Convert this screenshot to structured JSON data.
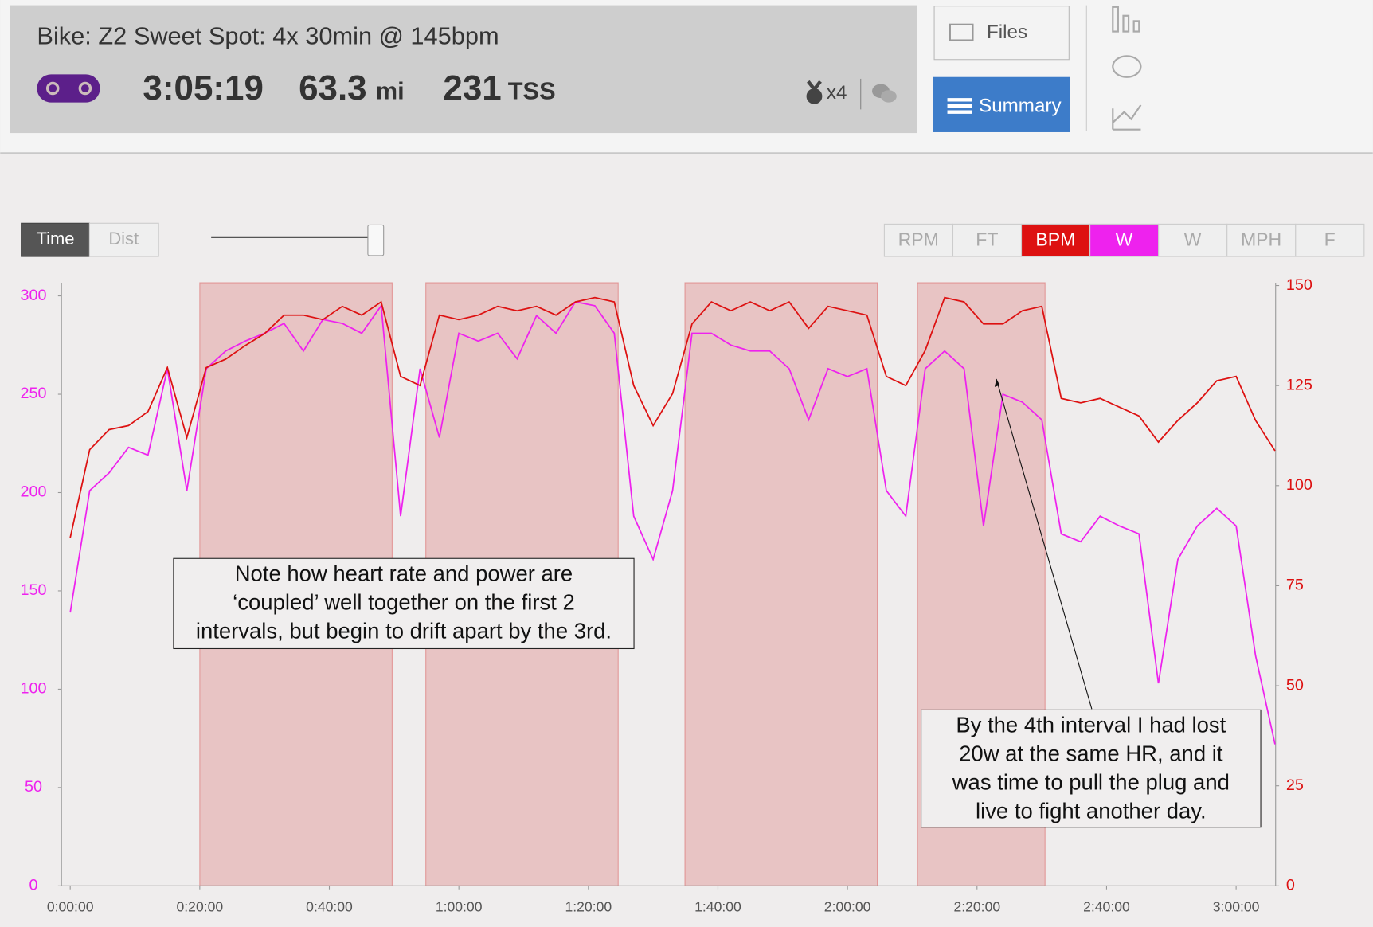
{
  "header": {
    "title": "Bike: Z2 Sweet Spot: 4x 30min @ 145bpm",
    "duration": "3:05:19",
    "distance": "63.3",
    "distance_unit": "mi",
    "tss": "231",
    "tss_unit": "TSS",
    "badge_count": "x4"
  },
  "nav": {
    "files": "Files",
    "summary": "Summary"
  },
  "toolbar": {
    "modes": [
      "Time",
      "Dist"
    ],
    "channels": [
      "RPM",
      "FT",
      "BPM",
      "W",
      "W",
      "MPH",
      "F"
    ]
  },
  "chart_data": {
    "type": "line",
    "x": [
      0,
      3,
      6,
      9,
      12,
      15,
      18,
      21,
      24,
      27,
      30,
      33,
      36,
      39,
      42,
      45,
      48,
      51,
      54,
      57,
      60,
      63,
      66,
      69,
      72,
      75,
      78,
      81,
      84,
      87,
      90,
      93,
      96,
      99,
      102,
      105,
      108,
      111,
      114,
      117,
      120,
      123,
      126,
      129,
      132,
      135,
      138,
      141,
      144,
      147,
      150,
      153,
      156,
      159,
      162,
      165,
      168,
      171,
      174,
      177,
      180,
      183,
      186
    ],
    "xlim": [
      -1.35,
      186.1
    ],
    "xticks": [
      {
        "value": 0,
        "label": "0:00:00"
      },
      {
        "value": 20,
        "label": "0:20:00"
      },
      {
        "value": 40,
        "label": "0:40:00"
      },
      {
        "value": 60,
        "label": "1:00:00"
      },
      {
        "value": 80,
        "label": "1:20:00"
      },
      {
        "value": 100,
        "label": "1:40:00"
      },
      {
        "value": 120,
        "label": "2:00:00"
      },
      {
        "value": 140,
        "label": "2:20:00"
      },
      {
        "value": 160,
        "label": "2:40:00"
      },
      {
        "value": 180,
        "label": "3:00:00"
      }
    ],
    "ylim": [
      0,
      306.7
    ],
    "yticks": [
      0,
      50,
      100,
      150,
      200,
      250,
      300
    ],
    "y2lim": [
      0,
      150.7
    ],
    "y2ticks": [
      0,
      25,
      50,
      75,
      100,
      125,
      150
    ],
    "y_color": "#ee22ee",
    "y2_color": "#dd1111",
    "shaded_regions": [
      [
        20,
        49.7
      ],
      [
        54.9,
        84.6
      ],
      [
        94.9,
        124.6
      ],
      [
        130.8,
        150.5
      ]
    ],
    "series": [
      {
        "color": "#ee22ee",
        "values": [
          139,
          201,
          210,
          223,
          219,
          263,
          201,
          263,
          272,
          277,
          281,
          286,
          272,
          288,
          286,
          281,
          295,
          188,
          263,
          228,
          281,
          277,
          281,
          268,
          290,
          281,
          297,
          295,
          281,
          188,
          166,
          201,
          281,
          281,
          275,
          272,
          272,
          263,
          237,
          263,
          259,
          263,
          201,
          188,
          263,
          272,
          263,
          183,
          250,
          246,
          237,
          179,
          175,
          188,
          183,
          179,
          103,
          166,
          183,
          192,
          183,
          117,
          72
        ]
      },
      {
        "color": "#dd1111",
        "axis": "y2",
        "values": [
          87,
          109,
          114,
          115,
          118.5,
          129.5,
          112,
          129.5,
          131.6,
          135,
          138,
          142.6,
          142.6,
          141.5,
          144.8,
          142.6,
          145.9,
          127.3,
          125,
          142.6,
          141.5,
          142.6,
          144.8,
          143.7,
          144.8,
          142.6,
          145.9,
          147,
          145.9,
          125,
          115,
          123,
          140.4,
          145.9,
          143.7,
          145.9,
          143.7,
          145.9,
          139.3,
          144.8,
          143.7,
          142.6,
          127.3,
          125,
          133.8,
          147,
          145.9,
          140.4,
          140.4,
          143.7,
          144.8,
          121.8,
          120.7,
          121.8,
          119.6,
          117.4,
          110.9,
          116.3,
          120.7,
          126.2,
          127.3,
          116.3,
          108.7
        ]
      }
    ],
    "annotations": [
      [
        "Note how heart rate and power are",
        "‘coupled’ well together on the first 2",
        "intervals, but begin to drift apart by the 3rd."
      ],
      [
        "By the 4th interval I had lost",
        "20w at the same HR, and it",
        "was time to pull the plug and",
        "live to fight another day."
      ]
    ]
  }
}
